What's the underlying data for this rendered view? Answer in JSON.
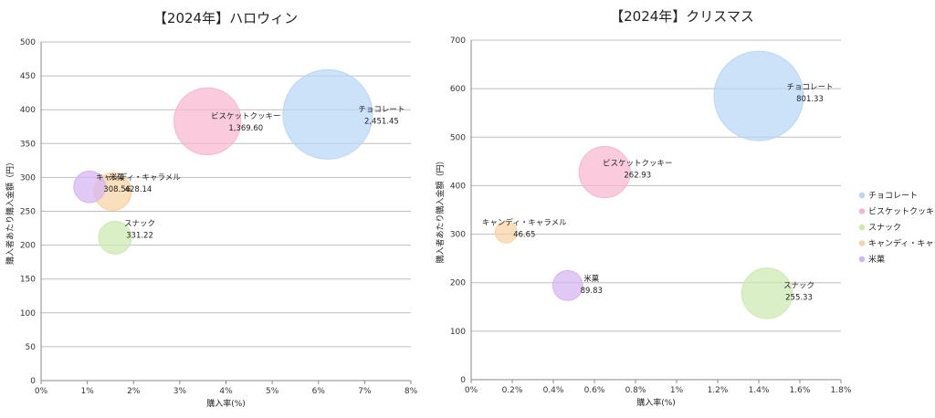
{
  "legend": [
    {
      "name": "チョコレート",
      "color": "#b7d7f7"
    },
    {
      "name": "ビスケットクッキー",
      "color": "#f7b7cf"
    },
    {
      "name": "スナック",
      "color": "#cde9b0"
    },
    {
      "name": "キャンディ・キャラメル",
      "color": "#f8d2a2"
    },
    {
      "name": "米菓",
      "color": "#d6b4f2"
    }
  ],
  "chart_data": [
    {
      "type": "bubble",
      "title": "【2024年】ハロウィン",
      "xlabel": "購入率(%)",
      "ylabel": "購入者あたり購入金額（円）",
      "xlim": [
        0,
        8
      ],
      "ylim": [
        0,
        500
      ],
      "xticks": [
        "0%",
        "1%",
        "2%",
        "3%",
        "4%",
        "5%",
        "6%",
        "7%",
        "8%"
      ],
      "yticks": [
        "0",
        "50",
        "100",
        "150",
        "200",
        "250",
        "300",
        "350",
        "400",
        "450",
        "500"
      ],
      "grid": true,
      "points": [
        {
          "name": "チョコレート",
          "x": 6.2,
          "y": 393,
          "size": 2451.45,
          "value_label": "2,451.45",
          "color": "#b7d7f7"
        },
        {
          "name": "ビスケットクッキー",
          "x": 3.6,
          "y": 383,
          "size": 1369.6,
          "value_label": "1,369.60",
          "color": "#f7b7cf"
        },
        {
          "name": "スナック",
          "x": 1.6,
          "y": 211,
          "size": 331.22,
          "value_label": "331.22",
          "color": "#cde9b0"
        },
        {
          "name": "キャンディ・キャラメル",
          "x": 1.55,
          "y": 279,
          "size": 428.14,
          "value_label": "428.14",
          "color": "#f8d2a2"
        },
        {
          "name": "米菓",
          "x": 1.05,
          "y": 286,
          "size": 308.56,
          "value_label": "308.56",
          "color": "#d6b4f2"
        }
      ]
    },
    {
      "type": "bubble",
      "title": "【2024年】クリスマス",
      "xlabel": "購入率(%)",
      "ylabel": "購入者あたり購入金額（円）",
      "xlim": [
        0,
        1.8
      ],
      "ylim": [
        0,
        700
      ],
      "xticks": [
        "0%",
        "0.2%",
        "0.4%",
        "0.6%",
        "0.8%",
        "1%",
        "1.2%",
        "1.4%",
        "1.6%",
        "1.8%"
      ],
      "yticks": [
        "0",
        "100",
        "200",
        "300",
        "400",
        "500",
        "600",
        "700"
      ],
      "grid": true,
      "legend_position": "right",
      "points": [
        {
          "name": "チョコレート",
          "x": 1.4,
          "y": 585,
          "size": 801.33,
          "value_label": "801.33",
          "color": "#b7d7f7"
        },
        {
          "name": "ビスケットクッキー",
          "x": 0.65,
          "y": 428,
          "size": 262.93,
          "value_label": "262.93",
          "color": "#f7b7cf"
        },
        {
          "name": "スナック",
          "x": 1.44,
          "y": 178,
          "size": 255.33,
          "value_label": "255.33",
          "color": "#cde9b0"
        },
        {
          "name": "キャンディ・キャラメル",
          "x": 0.17,
          "y": 304,
          "size": 46.65,
          "value_label": "46.65",
          "color": "#f8d2a2"
        },
        {
          "name": "米菓",
          "x": 0.47,
          "y": 194,
          "size": 89.83,
          "value_label": "89.83",
          "color": "#d6b4f2"
        }
      ]
    }
  ]
}
